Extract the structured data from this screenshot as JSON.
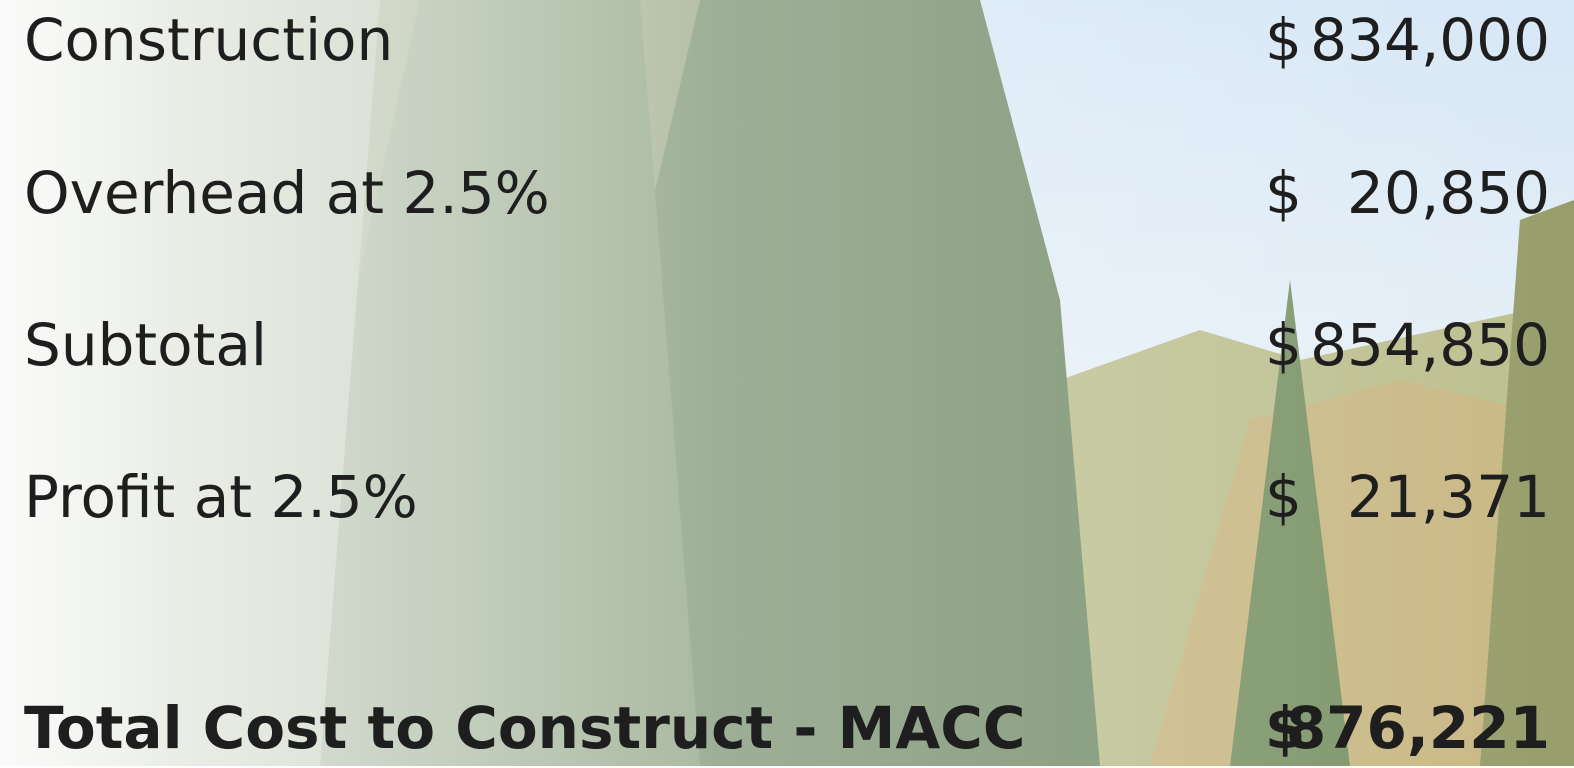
{
  "rows": [
    {
      "label": "Construction",
      "currency": "$",
      "amount": "834,000"
    },
    {
      "label": "Overhead at 2.5%",
      "currency": "$",
      "amount": "20,850"
    },
    {
      "label": "Subtotal",
      "currency": "$",
      "amount": "854,850"
    },
    {
      "label": "Profit at 2.5%",
      "currency": "$",
      "amount": "21,371"
    }
  ],
  "total": {
    "label": "Total Cost to Construct - MACC",
    "currency": "$",
    "amount": "876,221"
  }
}
